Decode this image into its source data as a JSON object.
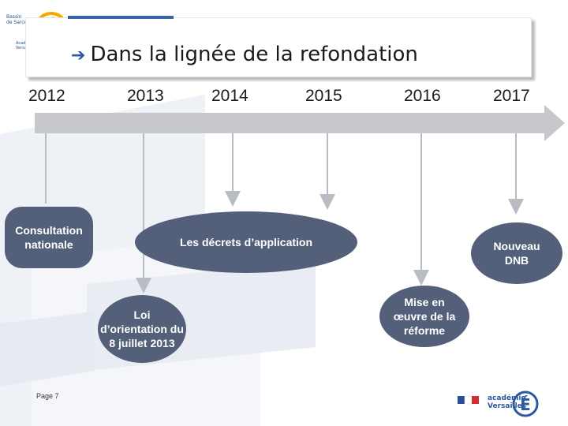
{
  "logo_top": {
    "lines": [
      "Bassin",
      "de Sarcelles"
    ],
    "sub": [
      "Académie",
      "Versailles"
    ]
  },
  "title": {
    "arrow": "➔",
    "text": "Dans la lignée de la refondation"
  },
  "timeline": {
    "years": [
      "2012",
      "2013",
      "2014",
      "2015",
      "2016",
      "2017"
    ]
  },
  "nodes": {
    "consultation": "Consultation nationale",
    "decrets": "Les décrets d’application",
    "loi": "Loi d’orientation du 8 juillet 2013",
    "mise": "Mise en œuvre de la réforme",
    "dnb": "Nouveau DNB"
  },
  "footer": {
    "page": "Page 7",
    "logo_text": [
      "académie",
      "Versailles"
    ]
  },
  "colors": {
    "node": "#54607a",
    "arrow": "#c6c8cc",
    "accent": "#3a64a8"
  }
}
